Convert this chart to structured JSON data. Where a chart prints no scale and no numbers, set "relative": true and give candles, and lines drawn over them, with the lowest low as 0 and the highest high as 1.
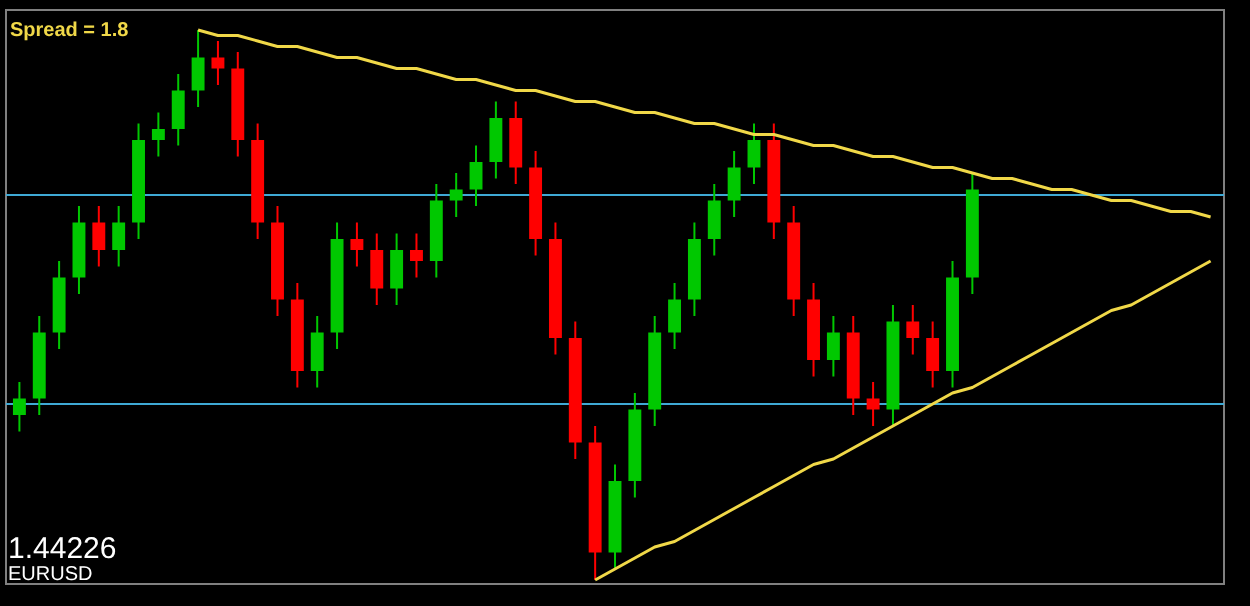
{
  "chart_data": {
    "type": "candlestick",
    "relative": true,
    "categories": [
      null,
      null,
      null,
      null,
      null,
      null,
      null,
      null,
      null,
      null,
      null,
      null,
      null,
      null,
      null,
      null,
      null,
      null,
      null,
      null,
      null,
      null,
      null,
      null,
      null,
      null,
      null,
      null,
      null,
      null,
      null,
      null,
      null,
      null,
      null,
      null,
      null,
      null,
      null,
      null,
      null,
      null,
      null,
      null,
      null,
      null,
      null,
      null,
      null,
      null,
      null,
      null,
      null,
      null,
      null,
      null,
      null,
      null,
      null,
      null,
      null
    ],
    "ohlc": [
      [
        0.3,
        0.36,
        0.27,
        0.33
      ],
      [
        0.33,
        0.48,
        0.3,
        0.45
      ],
      [
        0.45,
        0.58,
        0.42,
        0.55
      ],
      [
        0.55,
        0.68,
        0.52,
        0.65
      ],
      [
        0.65,
        0.68,
        0.57,
        0.6
      ],
      [
        0.6,
        0.68,
        0.57,
        0.65
      ],
      [
        0.65,
        0.83,
        0.62,
        0.8
      ],
      [
        0.8,
        0.85,
        0.77,
        0.82
      ],
      [
        0.82,
        0.92,
        0.79,
        0.89
      ],
      [
        0.89,
        1.0,
        0.86,
        0.95
      ],
      [
        0.95,
        0.98,
        0.9,
        0.93
      ],
      [
        0.93,
        0.96,
        0.77,
        0.8
      ],
      [
        0.8,
        0.83,
        0.62,
        0.65
      ],
      [
        0.65,
        0.68,
        0.48,
        0.51
      ],
      [
        0.51,
        0.54,
        0.35,
        0.38
      ],
      [
        0.38,
        0.48,
        0.35,
        0.45
      ],
      [
        0.45,
        0.65,
        0.42,
        0.62
      ],
      [
        0.62,
        0.65,
        0.57,
        0.6
      ],
      [
        0.6,
        0.63,
        0.5,
        0.53
      ],
      [
        0.53,
        0.63,
        0.5,
        0.6
      ],
      [
        0.6,
        0.63,
        0.55,
        0.58
      ],
      [
        0.58,
        0.72,
        0.55,
        0.69
      ],
      [
        0.69,
        0.74,
        0.66,
        0.71
      ],
      [
        0.71,
        0.79,
        0.68,
        0.76
      ],
      [
        0.76,
        0.87,
        0.73,
        0.84
      ],
      [
        0.84,
        0.87,
        0.72,
        0.75
      ],
      [
        0.75,
        0.78,
        0.59,
        0.62
      ],
      [
        0.62,
        0.65,
        0.41,
        0.44
      ],
      [
        0.44,
        0.47,
        0.22,
        0.25
      ],
      [
        0.25,
        0.28,
        0.0,
        0.05
      ],
      [
        0.05,
        0.21,
        0.02,
        0.18
      ],
      [
        0.18,
        0.34,
        0.15,
        0.31
      ],
      [
        0.31,
        0.48,
        0.28,
        0.45
      ],
      [
        0.45,
        0.54,
        0.42,
        0.51
      ],
      [
        0.51,
        0.65,
        0.48,
        0.62
      ],
      [
        0.62,
        0.72,
        0.59,
        0.69
      ],
      [
        0.69,
        0.78,
        0.66,
        0.75
      ],
      [
        0.75,
        0.83,
        0.72,
        0.8
      ],
      [
        0.8,
        0.83,
        0.62,
        0.65
      ],
      [
        0.65,
        0.68,
        0.48,
        0.51
      ],
      [
        0.51,
        0.54,
        0.37,
        0.4
      ],
      [
        0.4,
        0.48,
        0.37,
        0.45
      ],
      [
        0.45,
        0.48,
        0.3,
        0.33
      ],
      [
        0.33,
        0.36,
        0.28,
        0.31
      ],
      [
        0.31,
        0.5,
        0.28,
        0.47
      ],
      [
        0.47,
        0.5,
        0.41,
        0.44
      ],
      [
        0.44,
        0.47,
        0.35,
        0.38
      ],
      [
        0.38,
        0.58,
        0.35,
        0.55
      ],
      [
        0.55,
        0.74,
        0.52,
        0.71
      ],
      null,
      null,
      null,
      null,
      null,
      null,
      null,
      null,
      null,
      null,
      null,
      null
    ],
    "colors": [
      "#00c800",
      "#00c800",
      "#00c800",
      "#00c800",
      "#ff0000",
      "#00c800",
      "#00c800",
      "#00c800",
      "#00c800",
      "#00c800",
      "#ff0000",
      "#ff0000",
      "#ff0000",
      "#ff0000",
      "#ff0000",
      "#00c800",
      "#00c800",
      "#ff0000",
      "#ff0000",
      "#00c800",
      "#ff0000",
      "#00c800",
      "#00c800",
      "#00c800",
      "#00c800",
      "#ff0000",
      "#ff0000",
      "#ff0000",
      "#ff0000",
      "#ff0000",
      "#00c800",
      "#00c800",
      "#00c800",
      "#00c800",
      "#00c800",
      "#00c800",
      "#00c800",
      "#00c800",
      "#ff0000",
      "#ff0000",
      "#ff0000",
      "#00c800",
      "#ff0000",
      "#ff0000",
      "#00c800",
      "#ff0000",
      "#ff0000",
      "#00c800",
      "#00c800",
      null,
      null,
      null,
      null,
      null,
      null,
      null,
      null,
      null,
      null,
      null,
      null
    ],
    "series": [
      {
        "type": "line",
        "color": "#f0d848",
        "values": [
          null,
          null,
          null,
          null,
          null,
          null,
          null,
          null,
          null,
          1.0,
          0.99,
          0.99,
          0.98,
          0.97,
          0.97,
          0.96,
          0.95,
          0.95,
          0.94,
          0.93,
          0.93,
          0.92,
          0.91,
          0.91,
          0.9,
          0.89,
          0.89,
          0.88,
          0.87,
          0.87,
          0.86,
          0.85,
          0.85,
          0.84,
          0.83,
          0.83,
          0.82,
          0.81,
          0.81,
          0.8,
          0.79,
          0.79,
          0.78,
          0.77,
          0.77,
          0.76,
          0.75,
          0.75,
          0.74,
          0.73,
          0.73,
          0.72,
          0.71,
          0.71,
          0.7,
          0.69,
          0.69,
          0.68,
          0.67,
          0.67,
          0.66
        ]
      },
      {
        "type": "line",
        "color": "#f0d848",
        "values": [
          null,
          null,
          null,
          null,
          null,
          null,
          null,
          null,
          null,
          null,
          null,
          null,
          null,
          null,
          null,
          null,
          null,
          null,
          null,
          null,
          null,
          null,
          null,
          null,
          null,
          null,
          null,
          null,
          null,
          0.0,
          0.02,
          0.04,
          0.06,
          0.07,
          0.09,
          0.11,
          0.13,
          0.15,
          0.17,
          0.19,
          0.21,
          0.22,
          0.24,
          0.26,
          0.28,
          0.3,
          0.32,
          0.34,
          0.35,
          0.37,
          0.39,
          0.41,
          0.43,
          0.45,
          0.47,
          0.49,
          0.5,
          0.52,
          0.54,
          0.56,
          0.58
        ]
      }
    ],
    "ref_lines": [
      {
        "axis": "y",
        "value": 0.7,
        "color": "#3fa9d5"
      },
      {
        "axis": "y",
        "value": 0.32,
        "color": "#3fa9d5"
      }
    ],
    "annotations": [
      "Spread = 1.8",
      "1.44226",
      "EURUSD"
    ]
  }
}
